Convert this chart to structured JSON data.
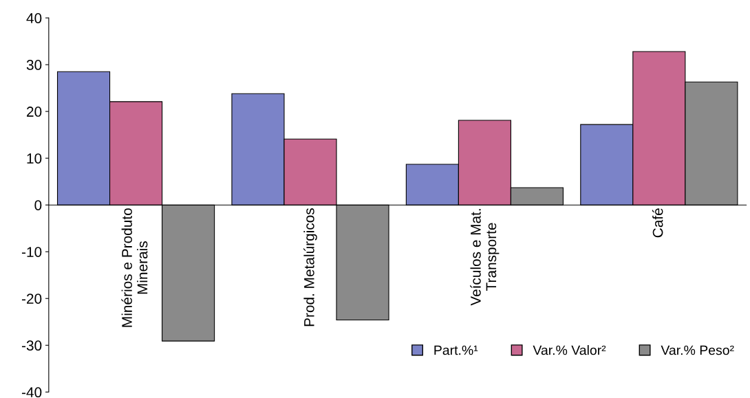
{
  "chart_data": {
    "type": "bar",
    "categories": [
      "Minérios e Produto\nMinerais",
      "Prod. Metalúrgicos",
      "Veículos e Mat.\nTransporte",
      "Café"
    ],
    "series": [
      {
        "name": "Part.%¹",
        "color": "#7b83c8",
        "values": [
          28.5,
          23.8,
          8.7,
          17.2
        ]
      },
      {
        "name": "Var.% Valor²",
        "color": "#c86890",
        "values": [
          22.1,
          14.1,
          18.1,
          32.8
        ]
      },
      {
        "name": "Var.% Peso²",
        "color": "#8a8a8a",
        "values": [
          -29.1,
          -24.6,
          3.7,
          26.3
        ]
      }
    ],
    "ylim": [
      -40,
      40
    ],
    "yticks": [
      -40,
      -30,
      -20,
      -10,
      0,
      10,
      20,
      30,
      40
    ],
    "grid": false,
    "legend": "bottom right"
  }
}
